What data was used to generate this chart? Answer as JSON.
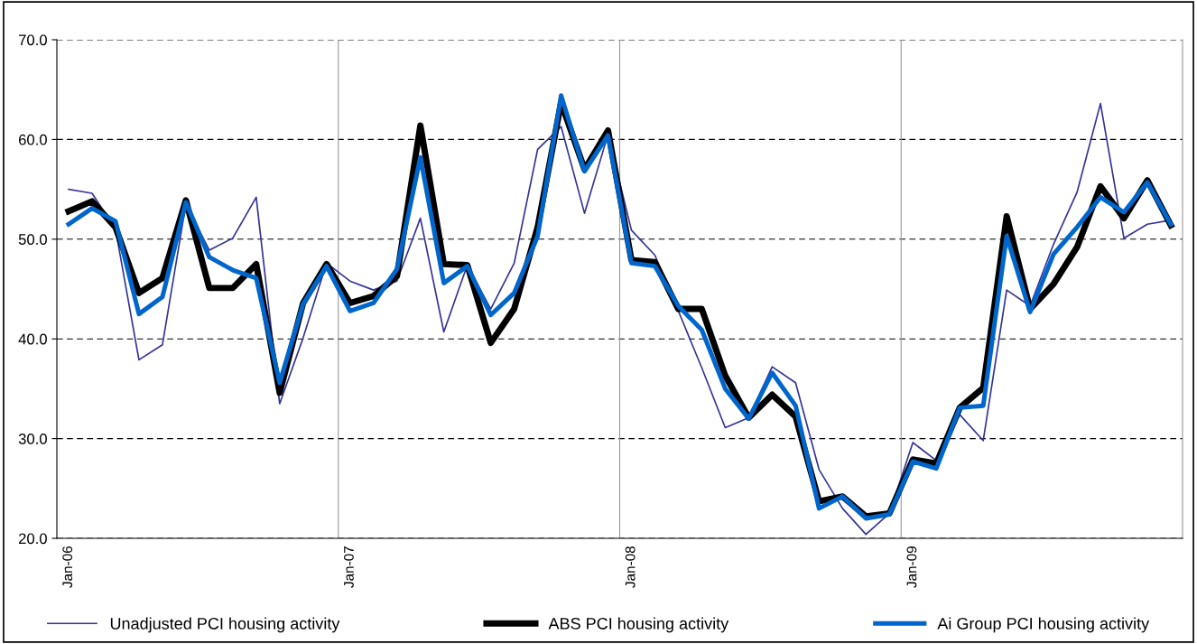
{
  "chart_data": {
    "type": "line",
    "categories": [
      "Jan-06",
      null,
      null,
      null,
      null,
      null,
      null,
      null,
      null,
      null,
      null,
      null,
      "Jan-07",
      null,
      null,
      null,
      null,
      null,
      null,
      null,
      null,
      null,
      null,
      null,
      "Jan-08",
      null,
      null,
      null,
      null,
      null,
      null,
      null,
      null,
      null,
      null,
      null,
      "Jan-09",
      null,
      null,
      null,
      null,
      null,
      null,
      null,
      null,
      null,
      null,
      null
    ],
    "series": [
      {
        "name": "Unadjusted PCI housing activity",
        "color": "#333399",
        "values": [
          55.0,
          54.6,
          51.0,
          37.9,
          39.4,
          53.5,
          48.9,
          50.1,
          54.2,
          33.5,
          40.1,
          47.6,
          45.8,
          44.9,
          45.8,
          52.1,
          40.7,
          47.4,
          43.0,
          47.6,
          59.0,
          61.3,
          52.6,
          60.5,
          50.9,
          48.4,
          42.8,
          37.1,
          31.1,
          32.1,
          37.2,
          35.6,
          26.9,
          23.0,
          20.4,
          22.5,
          29.6,
          27.8,
          32.4,
          29.8,
          44.9,
          43.3,
          49.5,
          54.7,
          63.6,
          50.1,
          51.5,
          51.9
        ]
      },
      {
        "name": "ABS PCI housing activity",
        "color": "#000000",
        "values": [
          52.8,
          53.8,
          51.2,
          44.6,
          46.1,
          53.9,
          45.1,
          45.1,
          47.5,
          34.6,
          43.6,
          47.5,
          43.6,
          44.3,
          46.3,
          61.4,
          47.5,
          47.4,
          39.6,
          43.0,
          51.2,
          63.7,
          57.0,
          60.9,
          47.9,
          47.7,
          43.0,
          43.0,
          36.3,
          32.1,
          34.4,
          32.2,
          23.7,
          24.2,
          22.2,
          22.5,
          27.9,
          27.5,
          33.1,
          35.1,
          52.3,
          43.0,
          45.5,
          49.2,
          55.3,
          52.1,
          55.9,
          51.4
        ]
      },
      {
        "name": "Ai Group PCI housing activity",
        "color": "#0066cc",
        "values": [
          51.5,
          53.1,
          51.8,
          42.5,
          44.2,
          53.7,
          48.2,
          46.9,
          46.1,
          35.6,
          43.5,
          47.3,
          42.8,
          43.6,
          47.0,
          58.2,
          45.6,
          47.3,
          42.4,
          44.6,
          50.3,
          64.4,
          56.8,
          60.4,
          47.6,
          47.3,
          43.3,
          40.9,
          35.0,
          32.0,
          36.6,
          33.3,
          23.0,
          24.2,
          22.0,
          22.4,
          27.7,
          27.0,
          33.1,
          33.3,
          50.3,
          42.7,
          48.5,
          51.2,
          54.2,
          52.7,
          55.7,
          51.5
        ]
      }
    ],
    "ylim": [
      20,
      70
    ],
    "yticks": [
      {
        "value": 20,
        "label": "20.0"
      },
      {
        "value": 30,
        "label": "30.0"
      },
      {
        "value": 40,
        "label": "40.0"
      },
      {
        "value": 50,
        "label": "50.0"
      },
      {
        "value": 60,
        "label": "60.0"
      },
      {
        "value": 70,
        "label": "70.0"
      }
    ],
    "grid": true,
    "legend": "bottom",
    "marker": "none",
    "line_style": "solid"
  }
}
